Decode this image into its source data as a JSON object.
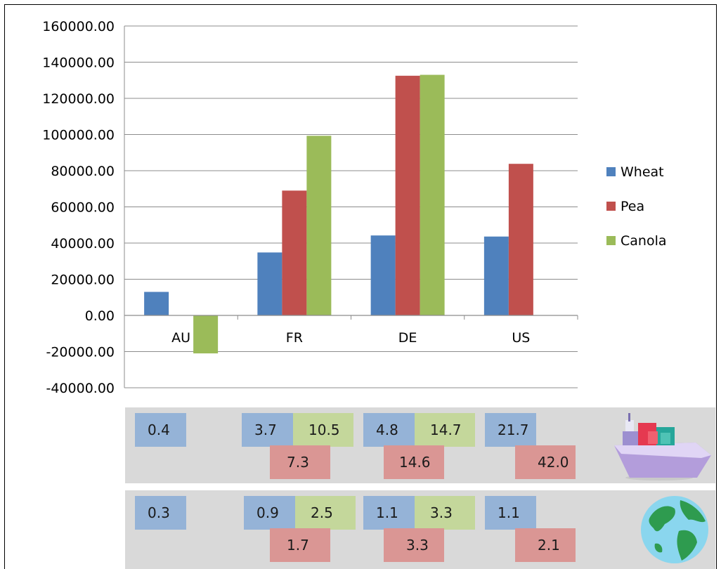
{
  "chart_data": {
    "type": "bar",
    "categories": [
      "AU",
      "FR",
      "DE",
      "US"
    ],
    "series": [
      {
        "name": "Wheat",
        "color": "#4f81bd",
        "values": [
          13000,
          34800,
          44200,
          43600
        ]
      },
      {
        "name": "Pea",
        "color": "#c0504d",
        "values": [
          null,
          69000,
          132500,
          83800
        ]
      },
      {
        "name": "Canola",
        "color": "#9bbb59",
        "values": [
          -21000,
          99300,
          133000,
          null
        ]
      }
    ],
    "yticks": [
      "160000.00",
      "140000.00",
      "120000.00",
      "100000.00",
      "80000.00",
      "60000.00",
      "40000.00",
      "20000.00",
      "0.00",
      "-20000.00",
      "-40000.00"
    ],
    "ylim": [
      -40000,
      160000
    ],
    "grid": true,
    "legend": "right"
  },
  "tables": {
    "shipping": {
      "icon": "cargo-ship-icon",
      "wheat": [
        "0.4",
        "3.7",
        "4.8",
        "21.7"
      ],
      "pea": [
        "",
        "7.3",
        "14.6",
        "42.0"
      ],
      "canola": [
        "",
        "10.5",
        "14.7",
        ""
      ]
    },
    "global": {
      "icon": "globe-icon",
      "wheat": [
        "0.3",
        "0.9",
        "1.1",
        "1.1"
      ],
      "pea": [
        "",
        "1.7",
        "3.3",
        "2.1"
      ],
      "canola": [
        "",
        "2.5",
        "3.3",
        ""
      ]
    }
  }
}
